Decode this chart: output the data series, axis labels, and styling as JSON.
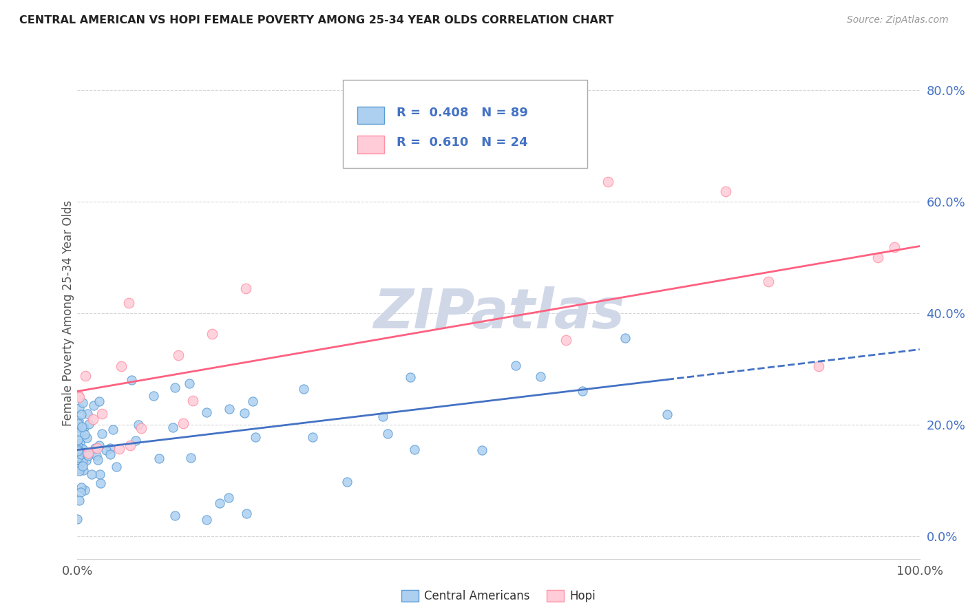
{
  "title": "CENTRAL AMERICAN VS HOPI FEMALE POVERTY AMONG 25-34 YEAR OLDS CORRELATION CHART",
  "source": "Source: ZipAtlas.com",
  "ylabel": "Female Poverty Among 25-34 Year Olds",
  "series1_name": "Central Americans",
  "series1_R": 0.408,
  "series1_N": 89,
  "series1_color": "#ADD0F0",
  "series1_edge_color": "#5B9BD5",
  "series1_line_color": "#4472C4",
  "series2_name": "Hopi",
  "series2_R": 0.61,
  "series2_N": 24,
  "series2_color": "#FFCCD8",
  "series2_edge_color": "#FF8FA3",
  "series2_line_color": "#FF6080",
  "bg_color": "#FFFFFF",
  "grid_color": "#CCCCCC",
  "title_color": "#222222",
  "legend_text_color": "#4472C4",
  "watermark_color": "#DDDDDD",
  "xlim": [
    0.0,
    1.0
  ],
  "ylim": [
    -0.04,
    0.84
  ],
  "ytick_vals": [
    0.0,
    0.2,
    0.4,
    0.6,
    0.8
  ],
  "ytick_labels": [
    "0.0%",
    "20.0%",
    "40.0%",
    "60.0%",
    "80.0%"
  ],
  "xtick_vals": [
    0.0,
    1.0
  ],
  "xtick_labels": [
    "0.0%",
    "100.0%"
  ],
  "series1_line_solid_end": 0.7,
  "series1_line_intercept": 0.155,
  "series1_line_slope": 0.18,
  "series2_line_intercept": 0.26,
  "series2_line_slope": 0.26
}
